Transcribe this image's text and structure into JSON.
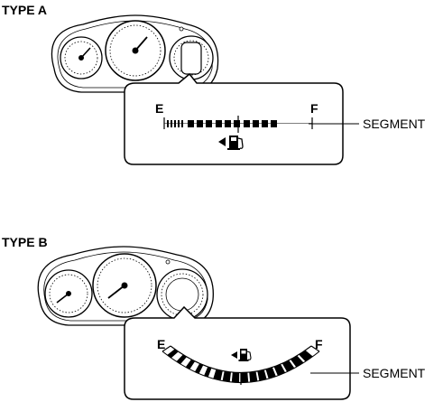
{
  "panels": [
    {
      "title": "TYPE A",
      "empty_label": "E",
      "full_label": "F",
      "segment_label": "SEGMENT",
      "icon": "fuel-pump-icon",
      "door_arrow": "left-arrow-icon"
    },
    {
      "title": "TYPE B",
      "empty_label": "E",
      "full_label": "F",
      "segment_label": "SEGMENT",
      "icon": "fuel-pump-icon",
      "door_arrow": "left-arrow-icon"
    }
  ],
  "colors": {
    "line": "#000000",
    "cluster_fill": "#ffffff",
    "segment_fill": "#000000"
  }
}
